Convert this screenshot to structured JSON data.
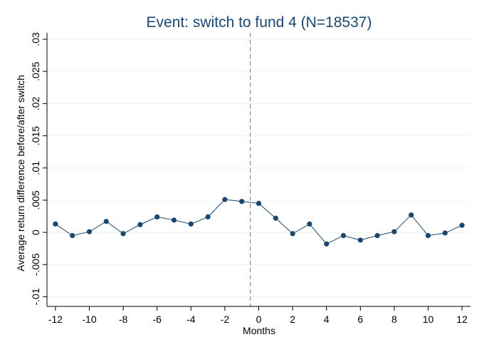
{
  "chart_data": {
    "type": "line",
    "title": "Event: switch to fund 4 (N=18537)",
    "xlabel": "Months",
    "ylabel": "Average return difference before/after switch",
    "x": [
      -12,
      -11,
      -10,
      -9,
      -8,
      -7,
      -6,
      -5,
      -4,
      -3,
      -2,
      -1,
      0,
      1,
      2,
      3,
      4,
      5,
      6,
      7,
      8,
      9,
      10,
      11,
      12
    ],
    "series": [
      {
        "values": [
          0.0013,
          -0.0005,
          0.0001,
          0.0017,
          -0.0002,
          0.0012,
          0.0024,
          0.0019,
          0.0013,
          0.0024,
          0.0051,
          0.0048,
          0.0045,
          0.0022,
          -0.0002,
          0.0013,
          -0.0018,
          -0.0005,
          -0.0012,
          -0.0005,
          0.0001,
          0.0027,
          -0.0005,
          -0.0001,
          0.0011
        ]
      }
    ],
    "xlim": [
      -12.5,
      12.5
    ],
    "ylim": [
      -0.0115,
      0.031
    ],
    "xticks": [
      -12,
      -10,
      -8,
      -6,
      -4,
      -2,
      0,
      2,
      4,
      6,
      8,
      10,
      12
    ],
    "xtick_labels": [
      "-12",
      "-10",
      "-8",
      "-6",
      "-4",
      "-2",
      "0",
      "2",
      "4",
      "6",
      "8",
      "10",
      "12"
    ],
    "yticks": [
      -0.01,
      -0.005,
      0,
      0.005,
      0.01,
      0.015,
      0.02,
      0.025,
      0.03
    ],
    "ytick_labels": [
      "-.01",
      "-.005",
      "0",
      ".005",
      ".01",
      ".015",
      ".02",
      ".025",
      ".03"
    ],
    "vline_x": -0.5,
    "grid": true,
    "colors": {
      "line": "#1a476f",
      "marker": "#1a476f",
      "grid": "#eaf2f3",
      "vline": "#8c8c8c",
      "title": "#1a476f"
    }
  }
}
